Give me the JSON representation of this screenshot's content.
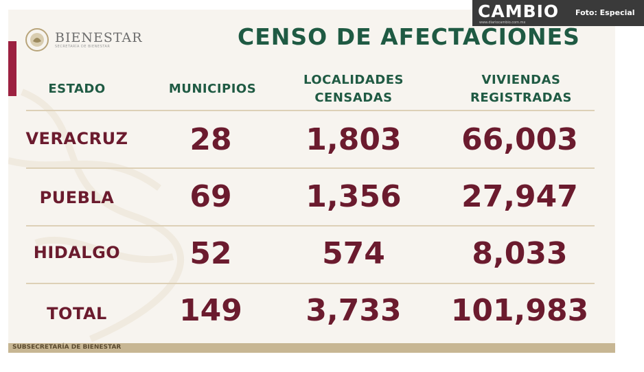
{
  "brand": {
    "logo_name": "BIENESTAR",
    "logo_sub": "SECRETARÍA DE BIENESTAR",
    "seal_icon": "mexican-eagle-seal-icon"
  },
  "title": "CENSO DE AFECTACIONES",
  "table": {
    "headers": {
      "estado": "ESTADO",
      "municipios": "MUNICIPIOS",
      "localidades_1": "LOCALIDADES",
      "localidades_2": "CENSADAS",
      "viviendas_1": "VIVIENDAS",
      "viviendas_2": "REGISTRADAS"
    },
    "rows": [
      {
        "estado": "VERACRUZ",
        "municipios": "28",
        "localidades": "1,803",
        "viviendas": "66,003"
      },
      {
        "estado": "PUEBLA",
        "municipios": "69",
        "localidades": "1,356",
        "viviendas": "27,947"
      },
      {
        "estado": "HIDALGO",
        "municipios": "52",
        "localidades": "574",
        "viviendas": "8,033"
      },
      {
        "estado": "TOTAL",
        "municipios": "149",
        "localidades": "3,733",
        "viviendas": "101,983"
      }
    ]
  },
  "footer": "SUBSECRETARÍA DE BIENESTAR",
  "watermark": {
    "name": "CAMBIO",
    "url": "www.diariocambio.com.mx",
    "photo_credit": "Foto: Especial"
  },
  "colors": {
    "green": "#1f5a43",
    "maroon": "#6b1b2e",
    "accent_bar": "#9c2140",
    "gold": "#c7b693"
  }
}
